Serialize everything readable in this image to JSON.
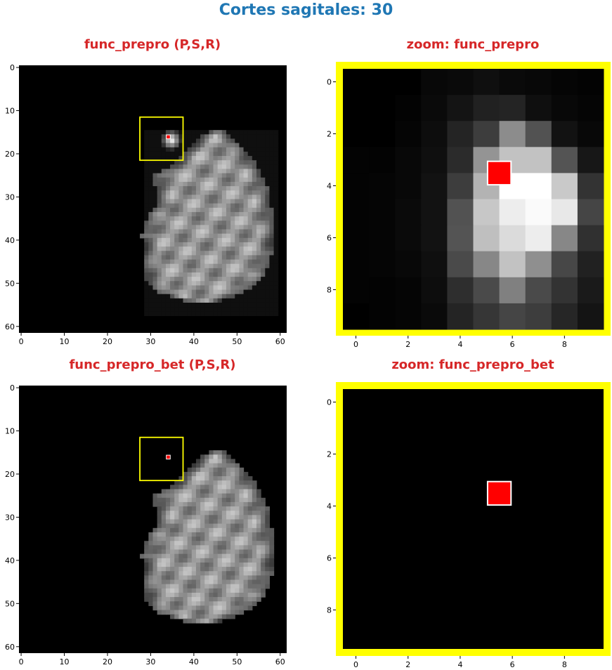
{
  "suptitle": "Cortes sagitales: 30",
  "colors": {
    "suptitle": "#1f77b4",
    "panel_title": "#d62728",
    "roi_box": "#ffff00",
    "marker": "#ff0000",
    "marker_edge": "#ffffff"
  },
  "chart_data": [
    {
      "type": "heatmap",
      "title": "func_prepro (P,S,R)",
      "colormap": "gray",
      "xticks": [
        "0",
        "10",
        "20",
        "30",
        "40",
        "50",
        "60"
      ],
      "yticks": [
        "0",
        "10",
        "20",
        "30",
        "40",
        "50",
        "60"
      ],
      "xlim": [
        -0.5,
        61.5
      ],
      "ylim": [
        61.5,
        -0.5
      ],
      "image_shape": [
        62,
        62
      ],
      "roi_box": {
        "x": [
          28,
          38
        ],
        "y": [
          12,
          22
        ]
      },
      "marker": {
        "x": 34,
        "y": 16
      },
      "content": "sagittal slice; brain tissue plus bright spot around the marker"
    },
    {
      "type": "heatmap",
      "title": "zoom: func_prepro",
      "colormap": "gray",
      "xticks": [
        "0",
        "2",
        "4",
        "6",
        "8"
      ],
      "yticks": [
        "0",
        "2",
        "4",
        "6",
        "8"
      ],
      "xlim": [
        -0.5,
        9.5
      ],
      "ylim": [
        9.5,
        -0.5
      ],
      "frame_color": "yellow",
      "marker": {
        "x": 6,
        "y": 4
      },
      "values": [
        [
          0.0,
          0.0,
          0.0,
          0.03,
          0.04,
          0.06,
          0.04,
          0.03,
          0.02,
          0.01
        ],
        [
          0.0,
          0.0,
          0.01,
          0.04,
          0.08,
          0.13,
          0.14,
          0.06,
          0.03,
          0.02
        ],
        [
          0.0,
          0.0,
          0.02,
          0.05,
          0.14,
          0.24,
          0.55,
          0.32,
          0.07,
          0.03
        ],
        [
          0.01,
          0.01,
          0.03,
          0.06,
          0.17,
          0.58,
          0.76,
          0.76,
          0.33,
          0.09
        ],
        [
          0.01,
          0.02,
          0.03,
          0.07,
          0.24,
          0.7,
          1.0,
          1.0,
          0.79,
          0.2
        ],
        [
          0.01,
          0.02,
          0.04,
          0.07,
          0.32,
          0.78,
          0.93,
          0.98,
          0.91,
          0.27
        ],
        [
          0.01,
          0.02,
          0.04,
          0.07,
          0.33,
          0.75,
          0.86,
          0.93,
          0.53,
          0.19
        ],
        [
          0.01,
          0.02,
          0.03,
          0.06,
          0.29,
          0.53,
          0.76,
          0.56,
          0.28,
          0.13
        ],
        [
          0.01,
          0.01,
          0.02,
          0.05,
          0.18,
          0.29,
          0.5,
          0.29,
          0.2,
          0.1
        ],
        [
          0.0,
          0.01,
          0.02,
          0.04,
          0.14,
          0.21,
          0.27,
          0.24,
          0.15,
          0.08
        ]
      ]
    },
    {
      "type": "heatmap",
      "title": "func_prepro_bet (P,S,R)",
      "colormap": "gray",
      "xticks": [
        "0",
        "10",
        "20",
        "30",
        "40",
        "50",
        "60"
      ],
      "yticks": [
        "0",
        "10",
        "20",
        "30",
        "40",
        "50",
        "60"
      ],
      "xlim": [
        -0.5,
        61.5
      ],
      "ylim": [
        61.5,
        -0.5
      ],
      "image_shape": [
        62,
        62
      ],
      "roi_box": {
        "x": [
          28,
          38
        ],
        "y": [
          12,
          22
        ]
      },
      "marker": {
        "x": 34,
        "y": 16
      },
      "content": "brain-extracted sagittal slice"
    },
    {
      "type": "heatmap",
      "title": "zoom: func_prepro_bet",
      "colormap": "gray",
      "xticks": [
        "0",
        "2",
        "4",
        "6",
        "8"
      ],
      "yticks": [
        "0",
        "2",
        "4",
        "6",
        "8"
      ],
      "xlim": [
        -0.5,
        9.5
      ],
      "ylim": [
        9.5,
        -0.5
      ],
      "frame_color": "yellow",
      "marker": {
        "x": 6,
        "y": 4
      },
      "values": "all zero"
    }
  ]
}
